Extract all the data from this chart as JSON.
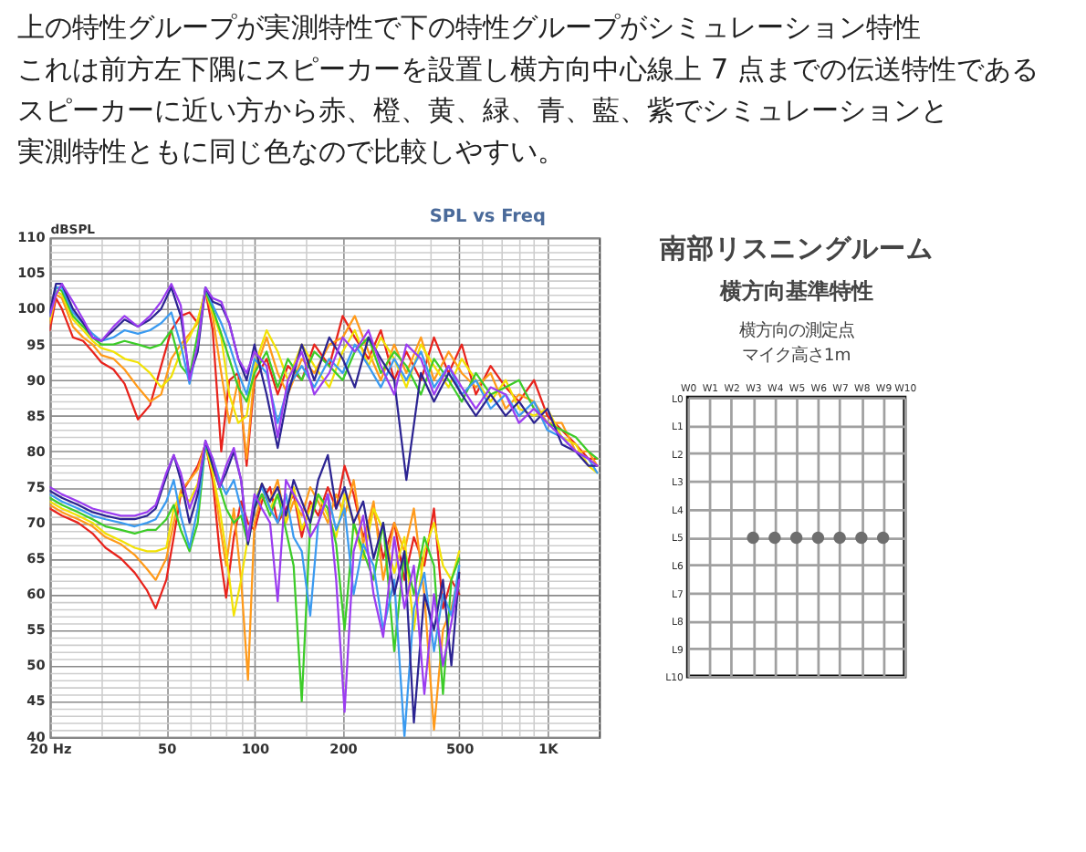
{
  "chart_data": [
    {
      "type": "line",
      "title": "SPL vs Freq",
      "ylabel": "dBSPL",
      "annotations": [
        "上の特性グループが実測特性で下の特性グループがシミュレーション特性",
        "これは前方左下隅にスピーカーを設置し横方向中心線上 7 点までの伝送特性である",
        "スピーカーに近い方から赤、橙、黄、緑、青、藍、紫でシミュレーションと",
        "実測特性ともに同じ色なので比較しやすい。"
      ],
      "log": "x",
      "grid": true,
      "xlim": [
        20,
        1500
      ],
      "ylim": [
        40,
        110
      ],
      "xticks": [
        {
          "value": 20,
          "label": "20 Hz"
        },
        {
          "value": 30,
          "label": null
        },
        {
          "value": 40,
          "label": null
        },
        50,
        {
          "value": 60,
          "label": null
        },
        {
          "value": 70,
          "label": null
        },
        {
          "value": 80,
          "label": null
        },
        {
          "value": 90,
          "label": null
        },
        100,
        {
          "value": 150,
          "label": null
        },
        200,
        {
          "value": 300,
          "label": null
        },
        {
          "value": 400,
          "label": null
        },
        500,
        {
          "value": 600,
          "label": null
        },
        {
          "value": 700,
          "label": null
        },
        {
          "value": 800,
          "label": null
        },
        {
          "value": 900,
          "label": null
        },
        {
          "value": 1000,
          "label": "1K"
        }
      ],
      "yticks": [
        40,
        {
          "value": 41,
          "label": null
        },
        {
          "value": 42,
          "label": null
        },
        {
          "value": 43,
          "label": null
        },
        {
          "value": 44,
          "label": null
        },
        45,
        {
          "value": 46,
          "label": null
        },
        {
          "value": 47,
          "label": null
        },
        {
          "value": 48,
          "label": null
        },
        {
          "value": 49,
          "label": null
        },
        50,
        {
          "value": 51,
          "label": null
        },
        {
          "value": 52,
          "label": null
        },
        {
          "value": 53,
          "label": null
        },
        {
          "value": 54,
          "label": null
        },
        55,
        {
          "value": 56,
          "label": null
        },
        {
          "value": 57,
          "label": null
        },
        {
          "value": 58,
          "label": null
        },
        {
          "value": 59,
          "label": null
        },
        60,
        {
          "value": 61,
          "label": null
        },
        {
          "value": 62,
          "label": null
        },
        {
          "value": 63,
          "label": null
        },
        {
          "value": 64,
          "label": null
        },
        65,
        {
          "value": 66,
          "label": null
        },
        {
          "value": 67,
          "label": null
        },
        {
          "value": 68,
          "label": null
        },
        {
          "value": 69,
          "label": null
        },
        70,
        {
          "value": 71,
          "label": null
        },
        {
          "value": 72,
          "label": null
        },
        {
          "value": 73,
          "label": null
        },
        {
          "value": 74,
          "label": null
        },
        75,
        {
          "value": 76,
          "label": null
        },
        {
          "value": 77,
          "label": null
        },
        {
          "value": 78,
          "label": null
        },
        {
          "value": 79,
          "label": null
        },
        80,
        {
          "value": 81,
          "label": null
        },
        {
          "value": 82,
          "label": null
        },
        {
          "value": 83,
          "label": null
        },
        {
          "value": 84,
          "label": null
        },
        85,
        {
          "value": 86,
          "label": null
        },
        {
          "value": 87,
          "label": null
        },
        {
          "value": 88,
          "label": null
        },
        {
          "value": 89,
          "label": null
        },
        90,
        {
          "value": 91,
          "label": null
        },
        {
          "value": 92,
          "label": null
        },
        {
          "value": 93,
          "label": null
        },
        {
          "value": 94,
          "label": null
        },
        95,
        {
          "value": 96,
          "label": null
        },
        {
          "value": 97,
          "label": null
        },
        {
          "value": 98,
          "label": null
        },
        {
          "value": 99,
          "label": null
        },
        100,
        {
          "value": 101,
          "label": null
        },
        {
          "value": 102,
          "label": null
        },
        {
          "value": 103,
          "label": null
        },
        {
          "value": 104,
          "label": null
        },
        105,
        {
          "value": 106,
          "label": null
        },
        {
          "value": 107,
          "label": null
        },
        {
          "value": 108,
          "label": null
        },
        {
          "value": 109,
          "label": null
        },
        110
      ],
      "series": [
        {
          "color": "#e8231c",
          "x": [
            20,
            21,
            22,
            24,
            26,
            28,
            30,
            33,
            36,
            40,
            44,
            48,
            52,
            56,
            60,
            64,
            68,
            72,
            77,
            82,
            88,
            94,
            100,
            110,
            120,
            130,
            145,
            160,
            180,
            200,
            220,
            245,
            270,
            300,
            330,
            370,
            410,
            460,
            510,
            570,
            640,
            720,
            800,
            900,
            1000,
            1120,
            1250,
            1380,
            1480
          ],
          "values": [
            97,
            101.5,
            100,
            96,
            95.5,
            94,
            92.5,
            91.5,
            89.5,
            84.5,
            86.5,
            92,
            97,
            99,
            99.5,
            98,
            102.5,
            97,
            80,
            90,
            91,
            78,
            90,
            93,
            88,
            92,
            90,
            95,
            92,
            99,
            96,
            93,
            97,
            90,
            94,
            90,
            96,
            91,
            95,
            88,
            92,
            89,
            87,
            90,
            85,
            83,
            81,
            79,
            79
          ]
        },
        {
          "color": "#ff9a1a",
          "x": [
            20,
            21,
            22,
            24,
            26,
            28,
            30,
            33,
            36,
            40,
            44,
            48,
            52,
            56,
            60,
            64,
            68,
            72,
            77,
            82,
            88,
            94,
            100,
            110,
            120,
            130,
            145,
            160,
            180,
            200,
            220,
            245,
            270,
            300,
            330,
            370,
            410,
            460,
            510,
            570,
            640,
            720,
            800,
            900,
            1000,
            1120,
            1250,
            1380,
            1480
          ],
          "values": [
            98,
            102,
            101.5,
            97.5,
            96,
            95,
            93.5,
            93,
            91.5,
            89,
            87,
            88,
            93,
            95,
            96.5,
            98,
            102.5,
            99,
            91,
            84,
            90,
            79,
            91,
            96,
            91,
            88,
            93,
            91,
            95,
            96,
            99,
            94,
            90,
            95,
            91,
            96,
            90,
            94,
            91,
            89,
            91,
            86,
            88,
            87,
            84,
            84,
            80,
            80,
            78
          ]
        },
        {
          "color": "#f2e205",
          "x": [
            20,
            21,
            22,
            24,
            26,
            28,
            30,
            33,
            36,
            40,
            44,
            48,
            52,
            56,
            60,
            64,
            68,
            72,
            77,
            82,
            88,
            94,
            100,
            110,
            120,
            130,
            145,
            160,
            180,
            200,
            220,
            245,
            270,
            300,
            330,
            370,
            410,
            460,
            510,
            570,
            640,
            720,
            800,
            900,
            1000,
            1120,
            1250,
            1380,
            1480
          ],
          "values": [
            98.5,
            102.5,
            102,
            98.5,
            97,
            95.5,
            94.5,
            94,
            93,
            92.5,
            91,
            89,
            90.5,
            94,
            96,
            98.5,
            102.5,
            99.5,
            96,
            88,
            84,
            85,
            92,
            97,
            94,
            90,
            95,
            92,
            89,
            94,
            97,
            92,
            96,
            93,
            89,
            95,
            92,
            89,
            93,
            90,
            87,
            90,
            86,
            85,
            86,
            82,
            81,
            78,
            77
          ]
        },
        {
          "color": "#3ccc28",
          "x": [
            20,
            21,
            22,
            24,
            26,
            28,
            30,
            33,
            36,
            40,
            44,
            48,
            52,
            56,
            60,
            64,
            68,
            72,
            77,
            82,
            88,
            94,
            100,
            110,
            120,
            130,
            145,
            160,
            180,
            200,
            220,
            245,
            270,
            300,
            330,
            370,
            410,
            460,
            510,
            570,
            640,
            720,
            800,
            900,
            1000,
            1120,
            1250,
            1380,
            1480
          ],
          "values": [
            99,
            103,
            102.5,
            99,
            97.5,
            96,
            95,
            95,
            95.5,
            95,
            94.5,
            95,
            97,
            92,
            90.5,
            96.5,
            102.5,
            100,
            96.5,
            93,
            89,
            87,
            91,
            94,
            89,
            93,
            90,
            94,
            92,
            90,
            94,
            96,
            91,
            94,
            92,
            88,
            93,
            90,
            87,
            91,
            88,
            89,
            90,
            86,
            84,
            83,
            82,
            80,
            79
          ]
        },
        {
          "color": "#3a9af0",
          "x": [
            20,
            21,
            22,
            24,
            26,
            28,
            30,
            33,
            36,
            40,
            44,
            48,
            52,
            56,
            60,
            64,
            68,
            72,
            77,
            82,
            88,
            94,
            100,
            110,
            120,
            130,
            145,
            160,
            180,
            200,
            220,
            245,
            270,
            300,
            330,
            370,
            410,
            460,
            510,
            570,
            640,
            720,
            800,
            900,
            1000,
            1120,
            1250,
            1380,
            1480
          ],
          "values": [
            99,
            103,
            103,
            99.5,
            98,
            96.5,
            95.5,
            96,
            97,
            96.5,
            97,
            98,
            99.5,
            95,
            89.5,
            95,
            103,
            100.5,
            98,
            95,
            91,
            88,
            93,
            91,
            84,
            89,
            92,
            89,
            93,
            91,
            95,
            92,
            89,
            93,
            90,
            94,
            89,
            92,
            88,
            90,
            86,
            88,
            85,
            87,
            83,
            82,
            80,
            79,
            77
          ]
        },
        {
          "color": "#2c2492",
          "x": [
            20,
            21,
            22,
            24,
            26,
            28,
            30,
            33,
            36,
            40,
            44,
            48,
            52,
            56,
            60,
            64,
            68,
            72,
            77,
            82,
            88,
            94,
            100,
            110,
            120,
            130,
            145,
            160,
            180,
            200,
            220,
            245,
            270,
            300,
            330,
            370,
            410,
            460,
            510,
            570,
            640,
            720,
            800,
            900,
            1000,
            1120,
            1250,
            1380,
            1480
          ],
          "values": [
            99.5,
            103.5,
            103.5,
            100,
            98,
            96,
            95.5,
            97,
            98.5,
            97.5,
            98.5,
            100,
            103,
            99,
            90.5,
            94,
            103,
            101,
            100.5,
            98,
            93,
            90,
            95,
            88,
            80.5,
            88,
            95,
            90,
            96,
            93,
            89,
            96,
            93,
            90,
            76,
            91,
            87,
            91,
            88,
            85,
            88,
            85,
            87,
            84,
            86,
            81,
            80,
            78,
            78
          ]
        },
        {
          "color": "#9b3cf0",
          "x": [
            20,
            21,
            22,
            24,
            26,
            28,
            30,
            33,
            36,
            40,
            44,
            48,
            52,
            56,
            60,
            64,
            68,
            72,
            77,
            82,
            88,
            94,
            100,
            110,
            120,
            130,
            145,
            160,
            180,
            200,
            220,
            245,
            270,
            300,
            330,
            370,
            410,
            460,
            510,
            570,
            640,
            720,
            800,
            900,
            1000,
            1120,
            1250,
            1380,
            1480
          ],
          "values": [
            99,
            102,
            103.5,
            101,
            98.5,
            96,
            95.5,
            97.5,
            99,
            97.5,
            99,
            101,
            103.5,
            100.5,
            90,
            95,
            103,
            101.5,
            101,
            98,
            93,
            91,
            94,
            92,
            82,
            90,
            94,
            88,
            91,
            96,
            94,
            97,
            92,
            88,
            95,
            93,
            88,
            92,
            89,
            86,
            89,
            88,
            84,
            86,
            84,
            82,
            80,
            79,
            78
          ]
        },
        {
          "color": "#e8231c",
          "x": [
            20,
            22,
            25,
            28,
            31,
            35,
            39,
            43,
            46,
            50,
            53,
            56,
            60,
            64,
            68,
            72,
            76,
            80,
            85,
            90,
            95,
            100,
            106,
            113,
            120,
            128,
            136,
            145,
            155,
            165,
            178,
            190,
            203,
            218,
            235,
            255,
            275,
            300,
            325,
            350,
            380,
            410,
            440,
            470,
            500
          ],
          "values": [
            72,
            71,
            70,
            68.5,
            66.5,
            65,
            63,
            60.5,
            58,
            62,
            68,
            74,
            76,
            78,
            81,
            76,
            66,
            59.5,
            68,
            73,
            70,
            69,
            73,
            75,
            70,
            72,
            74,
            68,
            73,
            71,
            75,
            72,
            78,
            74,
            68,
            72,
            65,
            70,
            62,
            68,
            64,
            72,
            58,
            62,
            60
          ]
        },
        {
          "color": "#ff9a1a",
          "x": [
            20,
            22,
            25,
            28,
            31,
            35,
            39,
            43,
            46,
            50,
            53,
            56,
            60,
            64,
            68,
            72,
            76,
            80,
            85,
            90,
            95,
            100,
            106,
            113,
            120,
            128,
            136,
            145,
            155,
            165,
            178,
            190,
            203,
            218,
            235,
            255,
            275,
            300,
            325,
            350,
            380,
            410,
            440,
            470,
            500
          ],
          "values": [
            72.5,
            71.5,
            70.5,
            69.5,
            68,
            67,
            65.5,
            63.5,
            62,
            65,
            70,
            74.5,
            76,
            77.5,
            81,
            77,
            70,
            64,
            72,
            62,
            48,
            70,
            74,
            73,
            76,
            70,
            73,
            71,
            75,
            73,
            70,
            74,
            71,
            76,
            67,
            73,
            62,
            70,
            66,
            72,
            60,
            41,
            55,
            58,
            63
          ]
        },
        {
          "color": "#f2e205",
          "x": [
            20,
            22,
            25,
            28,
            31,
            35,
            39,
            43,
            46,
            50,
            53,
            56,
            60,
            64,
            68,
            72,
            76,
            80,
            85,
            90,
            95,
            100,
            106,
            113,
            120,
            128,
            136,
            145,
            155,
            165,
            178,
            190,
            203,
            218,
            235,
            255,
            275,
            300,
            325,
            350,
            380,
            410,
            440,
            470,
            500
          ],
          "values": [
            73,
            72,
            71,
            70,
            68.5,
            67.5,
            66.5,
            66,
            66,
            66.5,
            72,
            74,
            73,
            75.5,
            81,
            77,
            72,
            66,
            57,
            62,
            68,
            73,
            75.5,
            72,
            74,
            70,
            75,
            69,
            72,
            74,
            71,
            68,
            74,
            70,
            65,
            72,
            69,
            63,
            68,
            55,
            66,
            70,
            64,
            62,
            66
          ]
        },
        {
          "color": "#3ccc28",
          "x": [
            20,
            22,
            25,
            28,
            31,
            35,
            39,
            43,
            46,
            50,
            53,
            56,
            60,
            64,
            68,
            72,
            76,
            80,
            85,
            90,
            95,
            100,
            106,
            113,
            120,
            128,
            136,
            145,
            155,
            165,
            178,
            190,
            203,
            218,
            235,
            255,
            275,
            300,
            325,
            350,
            380,
            410,
            440,
            470,
            500
          ],
          "values": [
            73.5,
            72.5,
            71.5,
            70.5,
            69.5,
            69,
            68.5,
            69,
            69,
            70.5,
            72.5,
            69,
            66,
            70,
            81,
            78,
            75,
            72,
            70,
            71,
            67,
            72,
            74,
            71,
            74,
            69,
            64,
            45,
            70,
            74,
            72,
            67,
            55,
            70,
            66,
            62,
            70,
            52,
            66,
            60,
            68,
            64,
            46,
            62,
            65
          ]
        },
        {
          "color": "#3a9af0",
          "x": [
            20,
            22,
            25,
            28,
            31,
            35,
            39,
            43,
            46,
            50,
            53,
            56,
            60,
            64,
            68,
            72,
            76,
            80,
            85,
            90,
            95,
            100,
            106,
            113,
            120,
            128,
            136,
            145,
            155,
            165,
            178,
            190,
            203,
            218,
            235,
            255,
            275,
            300,
            325,
            350,
            380,
            410,
            440,
            470,
            500
          ],
          "values": [
            74,
            73,
            72,
            71,
            70.5,
            70,
            69.5,
            70,
            70.5,
            73,
            76,
            71,
            66.5,
            72,
            81,
            79,
            76,
            74,
            76,
            72,
            68,
            73,
            75,
            72,
            70,
            74,
            68,
            66,
            57,
            70,
            74,
            69,
            72,
            60,
            67,
            64,
            55,
            62,
            40,
            58,
            63,
            52,
            60,
            57,
            64
          ]
        },
        {
          "color": "#2c2492",
          "x": [
            20,
            22,
            25,
            28,
            31,
            35,
            39,
            43,
            46,
            50,
            53,
            56,
            60,
            64,
            68,
            72,
            76,
            80,
            85,
            90,
            95,
            100,
            106,
            113,
            120,
            128,
            136,
            145,
            155,
            165,
            178,
            190,
            203,
            218,
            235,
            255,
            275,
            300,
            325,
            350,
            380,
            410,
            440,
            470,
            500
          ],
          "values": [
            74.5,
            73.5,
            72.5,
            71.5,
            71,
            70.5,
            70.5,
            71,
            72,
            76.5,
            79.5,
            76,
            70,
            74,
            81.5,
            78,
            75,
            77,
            80,
            76,
            67,
            72,
            75.5,
            73,
            75,
            71,
            76,
            73,
            70,
            76,
            79.5,
            72,
            75,
            70,
            73,
            65,
            70,
            60,
            66,
            42,
            60,
            55,
            62,
            50,
            63
          ]
        },
        {
          "color": "#9b3cf0",
          "x": [
            20,
            22,
            25,
            28,
            31,
            35,
            39,
            43,
            46,
            50,
            53,
            56,
            60,
            64,
            68,
            72,
            76,
            80,
            85,
            90,
            95,
            100,
            106,
            113,
            120,
            128,
            136,
            145,
            155,
            165,
            178,
            190,
            203,
            218,
            235,
            255,
            275,
            300,
            325,
            350,
            380,
            410,
            440,
            470,
            500
          ],
          "values": [
            75,
            74,
            73,
            72,
            71.5,
            71,
            71,
            71.5,
            72.5,
            77,
            79.5,
            77,
            72,
            75,
            81.5,
            79,
            75,
            78,
            80.5,
            76,
            67.5,
            74,
            72,
            70,
            59,
            76,
            74,
            72,
            68,
            70,
            74,
            62,
            43.5,
            66,
            71,
            60,
            54,
            68,
            58,
            64,
            46,
            60,
            50,
            56,
            62
          ]
        }
      ]
    },
    {
      "type": "other",
      "title": "南部リスニングルーム",
      "subtitle": "横方向基準特性",
      "annotations": [
        "横方向の測定点",
        "マイク高さ1m",
        {
          "text": "●",
          "x": "W3",
          "y": "L5"
        },
        {
          "text": "●",
          "x": "W4",
          "y": "L5"
        },
        {
          "text": "●",
          "x": "W5",
          "y": "L5"
        },
        {
          "text": "●",
          "x": "W6",
          "y": "L5"
        },
        {
          "text": "●",
          "x": "W7",
          "y": "L5"
        },
        {
          "text": "●",
          "x": "W8",
          "y": "L5"
        },
        {
          "text": "●",
          "x": "W9",
          "y": "L5"
        }
      ],
      "categories": [
        "W0",
        "W1",
        "W2",
        "W3",
        "W4",
        "W5",
        "W6",
        "W7",
        "W8",
        "W9",
        "W10"
      ],
      "y_categories": [
        "L0",
        "L1",
        "L2",
        "L3",
        "L4",
        "L5",
        "L6",
        "L7",
        "L8",
        "L9",
        "L10"
      ]
    }
  ]
}
